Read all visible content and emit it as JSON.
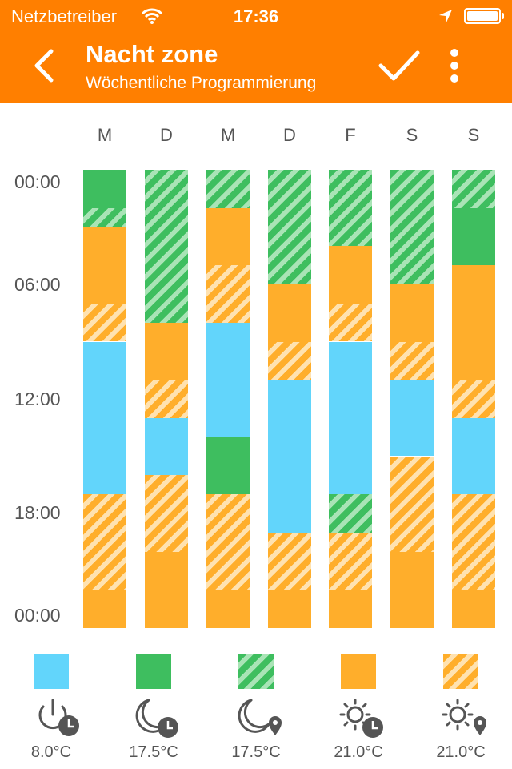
{
  "status": {
    "carrier": "Netzbetreiber",
    "time": "17:36"
  },
  "header": {
    "title": "Nacht zone",
    "subtitle": "Wöchentliche Programmierung",
    "back_icon": "chevron-left-icon",
    "confirm_icon": "check-icon",
    "menu_icon": "more-vertical-icon"
  },
  "colors": {
    "bar": "#ff7f00",
    "blue": "#62d5fb",
    "green": "#3ebe5f",
    "orange": "#ffae2b"
  },
  "days": [
    "M",
    "D",
    "M",
    "D",
    "F",
    "S",
    "S"
  ],
  "times": [
    "00:00",
    "06:00",
    "12:00",
    "18:00",
    "00:00"
  ],
  "schedule": [
    [
      {
        "from": 0,
        "to": 2,
        "mode": "green"
      },
      {
        "from": 2,
        "to": 3,
        "mode": "ghatch"
      },
      {
        "from": 3,
        "to": 7,
        "mode": "orange"
      },
      {
        "from": 7,
        "to": 9,
        "mode": "ohatch"
      },
      {
        "from": 9,
        "to": 17,
        "mode": "blue"
      },
      {
        "from": 17,
        "to": 22,
        "mode": "ohatch"
      },
      {
        "from": 22,
        "to": 24,
        "mode": "orange"
      }
    ],
    [
      {
        "from": 0,
        "to": 8,
        "mode": "ghatch"
      },
      {
        "from": 8,
        "to": 11,
        "mode": "orange"
      },
      {
        "from": 11,
        "to": 13,
        "mode": "ohatch"
      },
      {
        "from": 13,
        "to": 16,
        "mode": "blue"
      },
      {
        "from": 16,
        "to": 20,
        "mode": "ohatch"
      },
      {
        "from": 20,
        "to": 24,
        "mode": "orange"
      }
    ],
    [
      {
        "from": 0,
        "to": 2,
        "mode": "ghatch"
      },
      {
        "from": 2,
        "to": 5,
        "mode": "orange"
      },
      {
        "from": 5,
        "to": 8,
        "mode": "ohatch"
      },
      {
        "from": 8,
        "to": 14,
        "mode": "blue"
      },
      {
        "from": 14,
        "to": 17,
        "mode": "green"
      },
      {
        "from": 17,
        "to": 22,
        "mode": "ohatch"
      },
      {
        "from": 22,
        "to": 24,
        "mode": "orange"
      }
    ],
    [
      {
        "from": 0,
        "to": 6,
        "mode": "ghatch"
      },
      {
        "from": 6,
        "to": 9,
        "mode": "orange"
      },
      {
        "from": 9,
        "to": 11,
        "mode": "ohatch"
      },
      {
        "from": 11,
        "to": 19,
        "mode": "blue"
      },
      {
        "from": 19,
        "to": 22,
        "mode": "ohatch"
      },
      {
        "from": 22,
        "to": 24,
        "mode": "orange"
      }
    ],
    [
      {
        "from": 0,
        "to": 4,
        "mode": "ghatch"
      },
      {
        "from": 4,
        "to": 7,
        "mode": "orange"
      },
      {
        "from": 7,
        "to": 9,
        "mode": "ohatch"
      },
      {
        "from": 9,
        "to": 17,
        "mode": "blue"
      },
      {
        "from": 17,
        "to": 19,
        "mode": "ghatch"
      },
      {
        "from": 19,
        "to": 22,
        "mode": "ohatch"
      },
      {
        "from": 22,
        "to": 24,
        "mode": "orange"
      }
    ],
    [
      {
        "from": 0,
        "to": 6,
        "mode": "ghatch"
      },
      {
        "from": 6,
        "to": 9,
        "mode": "orange"
      },
      {
        "from": 9,
        "to": 11,
        "mode": "ohatch"
      },
      {
        "from": 11,
        "to": 15,
        "mode": "blue"
      },
      {
        "from": 15,
        "to": 20,
        "mode": "ohatch"
      },
      {
        "from": 20,
        "to": 24,
        "mode": "orange"
      }
    ],
    [
      {
        "from": 0,
        "to": 2,
        "mode": "ghatch"
      },
      {
        "from": 2,
        "to": 5,
        "mode": "green"
      },
      {
        "from": 5,
        "to": 11,
        "mode": "orange"
      },
      {
        "from": 11,
        "to": 13,
        "mode": "ohatch"
      },
      {
        "from": 13,
        "to": 17,
        "mode": "blue"
      },
      {
        "from": 17,
        "to": 22,
        "mode": "ohatch"
      },
      {
        "from": 22,
        "to": 24,
        "mode": "orange"
      }
    ]
  ],
  "legend": [
    {
      "mode": "blue",
      "icon": "power-clock-icon",
      "value": "8.0°C"
    },
    {
      "mode": "green",
      "icon": "moon-clock-icon",
      "value": "17.5°C"
    },
    {
      "mode": "ghatch",
      "icon": "moon-location-icon",
      "value": "17.5°C"
    },
    {
      "mode": "orange",
      "icon": "sun-clock-icon",
      "value": "21.0°C"
    },
    {
      "mode": "ohatch",
      "icon": "sun-location-icon",
      "value": "21.0°C"
    }
  ]
}
